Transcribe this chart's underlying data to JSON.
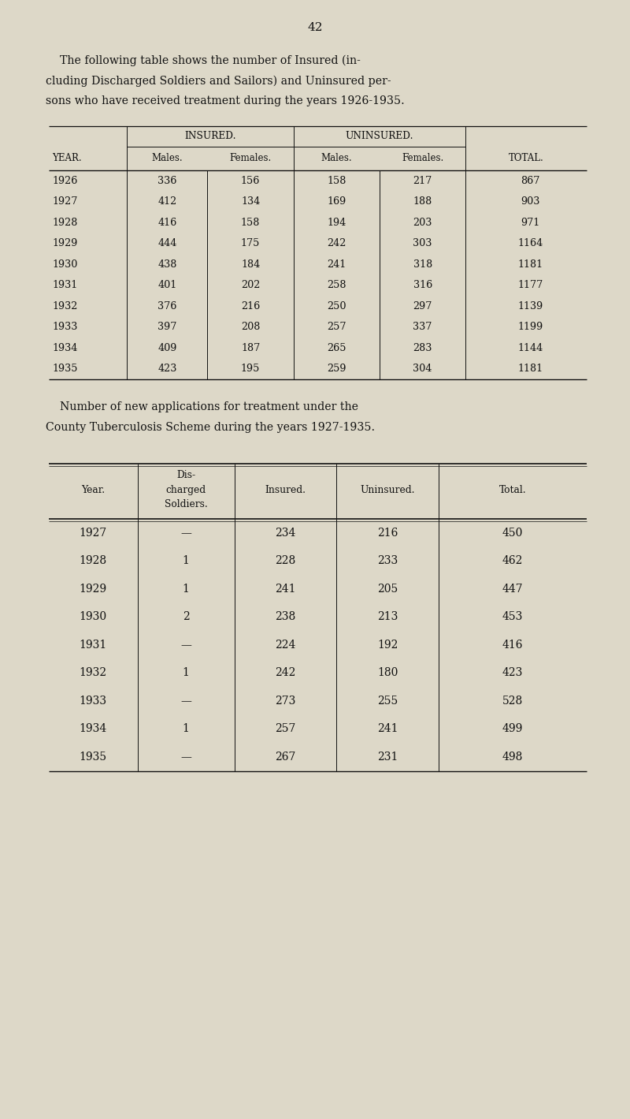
{
  "page_number": "42",
  "bg_color": "#ddd8c8",
  "text_color": "#111111",
  "intro_text_lines": [
    "    The following table shows the number of Insured (in-",
    "cluding Discharged Soldiers and Sailors) and Uninsured per-",
    "sons who have received treatment during the years 1926-1935."
  ],
  "table1": {
    "col_headers_sub": [
      "YEAR.",
      "Males.",
      "Females.",
      "Males.",
      "Females.",
      "TOTAL."
    ],
    "insured_label": "INSURED.",
    "uninsured_label": "UNINSURED.",
    "rows": [
      [
        "1926",
        "336",
        "156",
        "158",
        "217",
        "867"
      ],
      [
        "1927",
        "412",
        "134",
        "169",
        "188",
        "903"
      ],
      [
        "1928",
        "416",
        "158",
        "194",
        "203",
        "971"
      ],
      [
        "1929",
        "444",
        "175",
        "242",
        "303",
        "1164"
      ],
      [
        "1930",
        "438",
        "184",
        "241",
        "318",
        "1181"
      ],
      [
        "1931",
        "401",
        "202",
        "258",
        "316",
        "1177"
      ],
      [
        "1932",
        "376",
        "216",
        "250",
        "297",
        "1139"
      ],
      [
        "1933",
        "397",
        "208",
        "257",
        "337",
        "1199"
      ],
      [
        "1934",
        "409",
        "187",
        "265",
        "283",
        "1144"
      ],
      [
        "1935",
        "423",
        "195",
        "259",
        "304",
        "1181"
      ]
    ]
  },
  "middle_text_lines": [
    "    Number of new applications for treatment under the",
    "County Tuberculosis Scheme during the years 1927-1935."
  ],
  "table2": {
    "col_headers": [
      "Year.",
      "Dis-\ncharged\nSoldiers.",
      "Insured.",
      "Uninsured.",
      "Total."
    ],
    "rows": [
      [
        "1927",
        "—",
        "234",
        "216",
        "450"
      ],
      [
        "1928",
        "1",
        "228",
        "233",
        "462"
      ],
      [
        "1929",
        "1",
        "241",
        "205",
        "447"
      ],
      [
        "1930",
        "2",
        "238",
        "213",
        "453"
      ],
      [
        "1931",
        "—",
        "224",
        "192",
        "416"
      ],
      [
        "1932",
        "1",
        "242",
        "180",
        "423"
      ],
      [
        "1933",
        "—",
        "273",
        "255",
        "528"
      ],
      [
        "1934",
        "1",
        "257",
        "241",
        "499"
      ],
      [
        "1935",
        "—",
        "267",
        "231",
        "498"
      ]
    ]
  }
}
